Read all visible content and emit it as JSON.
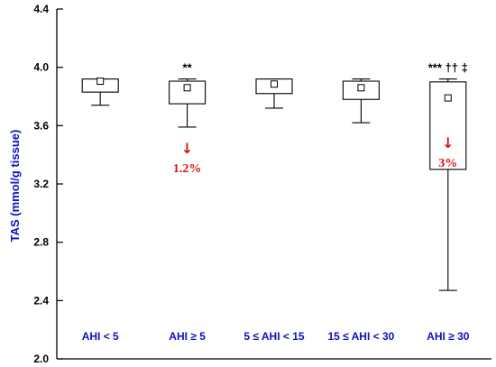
{
  "chart_data": {
    "type": "box",
    "ylabel": "TAS (mmol/g tissue)",
    "ylim": [
      2.0,
      4.4
    ],
    "yticks": [
      "2.0",
      "2.4",
      "2.8",
      "3.2",
      "3.6",
      "4.0",
      "4.4"
    ],
    "grid": false,
    "categories": [
      "AHI < 5",
      "AHI ≥ 5",
      "5 ≤ AHI < 15",
      "15 ≤ AHI < 30",
      "AHI ≥ 30"
    ],
    "boxes": [
      {
        "whisker_low": 3.74,
        "q1": 3.83,
        "median": 3.905,
        "q3": 3.92,
        "whisker_high": 3.92
      },
      {
        "whisker_low": 3.59,
        "q1": 3.75,
        "median": 3.86,
        "q3": 3.905,
        "whisker_high": 3.92
      },
      {
        "whisker_low": 3.72,
        "q1": 3.82,
        "median": 3.885,
        "q3": 3.92,
        "whisker_high": 3.92
      },
      {
        "whisker_low": 3.62,
        "q1": 3.78,
        "median": 3.86,
        "q3": 3.905,
        "whisker_high": 3.92
      },
      {
        "whisker_low": 2.47,
        "q1": 3.3,
        "median": 3.79,
        "q3": 3.9,
        "whisker_high": 3.92
      }
    ],
    "annotations": [
      {
        "category_index": 1,
        "significance": "**",
        "arrow": "↓",
        "percent": "1.2%"
      },
      {
        "category_index": 4,
        "significance": "*** †† ‡",
        "arrow": "↓",
        "percent": "3%"
      }
    ],
    "colors": {
      "axis": "#000000",
      "category_label": "#1010c0",
      "annotation": "#e01010"
    }
  }
}
